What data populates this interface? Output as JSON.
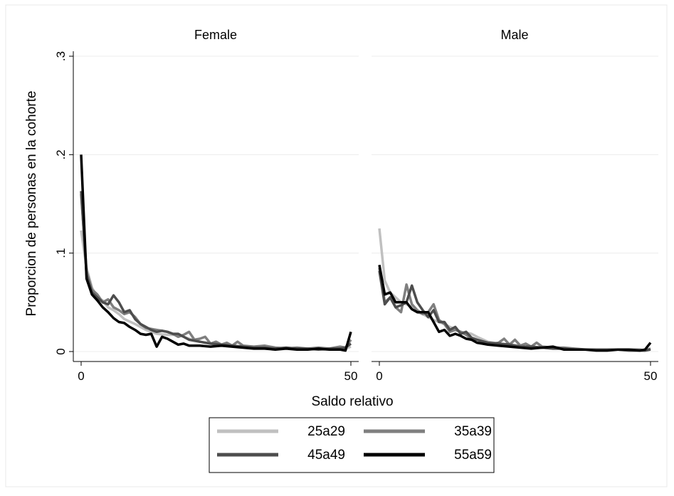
{
  "chart_data": {
    "type": "line",
    "ylabel": "Proporcion de personas en la cohorte",
    "xlabel": "Saldo relativo",
    "ylim": [
      0,
      0.3
    ],
    "xlim": [
      0,
      50
    ],
    "yticks": [
      {
        "value": 0,
        "label": "0"
      },
      {
        "value": 0.1,
        "label": ".1"
      },
      {
        "value": 0.2,
        "label": ".2"
      },
      {
        "value": 0.3,
        "label": ".3"
      }
    ],
    "xticks": [
      {
        "value": 0,
        "label": "0"
      },
      {
        "value": 50,
        "label": "50"
      }
    ],
    "grid": true,
    "legend_position": "bottom",
    "legend": [
      {
        "label": "25a29",
        "color": "#c0c0c0"
      },
      {
        "label": "35a39",
        "color": "#7f7f7f"
      },
      {
        "label": "45a49",
        "color": "#4d4d4d"
      },
      {
        "label": "55a59",
        "color": "#000000"
      }
    ],
    "panels": [
      {
        "title": "Female",
        "series": [
          {
            "name": "25a29",
            "color": "#c0c0c0",
            "x": [
              0,
              1,
              2,
              3,
              4,
              5,
              6,
              7,
              8,
              10,
              12,
              14,
              16,
              18,
              20,
              22,
              25,
              30,
              35,
              40,
              45,
              49,
              50
            ],
            "y": [
              0.123,
              0.085,
              0.065,
              0.055,
              0.052,
              0.045,
              0.042,
              0.038,
              0.033,
              0.028,
              0.022,
              0.018,
              0.017,
              0.017,
              0.013,
              0.01,
              0.007,
              0.005,
              0.004,
              0.003,
              0.002,
              0.003,
              0.005
            ]
          },
          {
            "name": "35a39",
            "color": "#7f7f7f",
            "x": [
              0,
              1,
              2,
              3,
              4,
              5,
              6,
              7,
              8,
              9,
              10,
              11,
              12,
              13,
              14,
              15,
              16,
              17,
              18,
              19,
              20,
              21,
              22,
              23,
              24,
              25,
              26,
              27,
              28,
              29,
              30,
              32,
              34,
              36,
              38,
              40,
              42,
              44,
              46,
              48,
              49,
              50
            ],
            "y": [
              0.16,
              0.082,
              0.063,
              0.058,
              0.05,
              0.053,
              0.045,
              0.042,
              0.038,
              0.04,
              0.035,
              0.028,
              0.024,
              0.023,
              0.022,
              0.021,
              0.02,
              0.018,
              0.015,
              0.017,
              0.02,
              0.012,
              0.013,
              0.015,
              0.008,
              0.01,
              0.007,
              0.009,
              0.006,
              0.01,
              0.006,
              0.005,
              0.006,
              0.004,
              0.003,
              0.004,
              0.003,
              0.004,
              0.003,
              0.005,
              0.004,
              0.012
            ]
          },
          {
            "name": "45a49",
            "color": "#4d4d4d",
            "x": [
              0,
              1,
              2,
              3,
              4,
              5,
              6,
              7,
              8,
              9,
              10,
              11,
              12,
              13,
              14,
              15,
              16,
              17,
              18,
              20,
              22,
              24,
              26,
              28,
              30,
              32,
              34,
              36,
              38,
              40,
              42,
              44,
              46,
              48,
              49,
              50
            ],
            "y": [
              0.163,
              0.078,
              0.06,
              0.055,
              0.05,
              0.048,
              0.057,
              0.05,
              0.04,
              0.042,
              0.033,
              0.028,
              0.025,
              0.022,
              0.02,
              0.021,
              0.02,
              0.018,
              0.018,
              0.012,
              0.01,
              0.008,
              0.007,
              0.006,
              0.005,
              0.004,
              0.004,
              0.003,
              0.004,
              0.003,
              0.003,
              0.002,
              0.003,
              0.003,
              0.004,
              0.008
            ]
          },
          {
            "name": "55a59",
            "color": "#000000",
            "x": [
              0,
              1,
              2,
              3,
              4,
              5,
              6,
              7,
              8,
              9,
              10,
              11,
              12,
              13,
              14,
              15,
              16,
              17,
              18,
              19,
              20,
              22,
              24,
              26,
              28,
              30,
              32,
              34,
              36,
              38,
              40,
              42,
              44,
              46,
              48,
              49,
              50
            ],
            "y": [
              0.2,
              0.074,
              0.058,
              0.052,
              0.045,
              0.04,
              0.034,
              0.03,
              0.029,
              0.025,
              0.022,
              0.018,
              0.017,
              0.018,
              0.005,
              0.015,
              0.013,
              0.01,
              0.007,
              0.008,
              0.006,
              0.006,
              0.005,
              0.006,
              0.005,
              0.004,
              0.003,
              0.003,
              0.002,
              0.003,
              0.002,
              0.002,
              0.003,
              0.002,
              0.002,
              0.001,
              0.02
            ]
          }
        ]
      },
      {
        "title": "Male",
        "series": [
          {
            "name": "25a29",
            "color": "#c0c0c0",
            "x": [
              0,
              1,
              2,
              3,
              4,
              5,
              6,
              7,
              8,
              9,
              10,
              11,
              12,
              13,
              14,
              15,
              16,
              17,
              18,
              20,
              22,
              24,
              26,
              28,
              30,
              32,
              34,
              36,
              38,
              40,
              42,
              44,
              46,
              48,
              49,
              50
            ],
            "y": [
              0.125,
              0.072,
              0.06,
              0.055,
              0.05,
              0.048,
              0.045,
              0.04,
              0.038,
              0.035,
              0.032,
              0.03,
              0.028,
              0.025,
              0.023,
              0.02,
              0.019,
              0.018,
              0.015,
              0.01,
              0.008,
              0.007,
              0.006,
              0.005,
              0.004,
              0.003,
              0.003,
              0.002,
              0.002,
              0.002,
              0.002,
              0.002,
              0.001,
              0.001,
              0.001,
              0.003
            ]
          },
          {
            "name": "35a39",
            "color": "#7f7f7f",
            "x": [
              0,
              1,
              2,
              3,
              4,
              5,
              6,
              7,
              8,
              9,
              10,
              11,
              12,
              13,
              14,
              15,
              16,
              17,
              18,
              19,
              20,
              21,
              22,
              23,
              24,
              25,
              26,
              27,
              28,
              29,
              30,
              32,
              34,
              36,
              38,
              40,
              42,
              44,
              46,
              48,
              49,
              50
            ],
            "y": [
              0.085,
              0.05,
              0.055,
              0.045,
              0.04,
              0.068,
              0.048,
              0.042,
              0.038,
              0.04,
              0.048,
              0.032,
              0.028,
              0.02,
              0.022,
              0.02,
              0.017,
              0.013,
              0.012,
              0.01,
              0.009,
              0.008,
              0.009,
              0.013,
              0.007,
              0.012,
              0.006,
              0.008,
              0.005,
              0.009,
              0.005,
              0.004,
              0.004,
              0.003,
              0.002,
              0.002,
              0.002,
              0.002,
              0.002,
              0.002,
              0.001,
              0.003
            ]
          },
          {
            "name": "45a49",
            "color": "#4d4d4d",
            "x": [
              0,
              1,
              2,
              3,
              4,
              5,
              6,
              7,
              8,
              9,
              10,
              11,
              12,
              13,
              14,
              15,
              16,
              17,
              18,
              20,
              22,
              24,
              26,
              28,
              30,
              32,
              34,
              36,
              38,
              40,
              42,
              44,
              46,
              48,
              49,
              50
            ],
            "y": [
              0.082,
              0.048,
              0.055,
              0.045,
              0.047,
              0.05,
              0.067,
              0.05,
              0.042,
              0.035,
              0.042,
              0.03,
              0.03,
              0.022,
              0.025,
              0.018,
              0.02,
              0.014,
              0.012,
              0.009,
              0.008,
              0.007,
              0.005,
              0.005,
              0.004,
              0.003,
              0.003,
              0.002,
              0.002,
              0.002,
              0.002,
              0.002,
              0.001,
              0.001,
              0.001,
              0.002
            ]
          },
          {
            "name": "55a59",
            "color": "#000000",
            "x": [
              0,
              1,
              2,
              3,
              4,
              5,
              6,
              7,
              8,
              9,
              10,
              11,
              12,
              13,
              14,
              15,
              16,
              17,
              18,
              19,
              20,
              22,
              24,
              26,
              28,
              30,
              32,
              34,
              36,
              38,
              40,
              42,
              44,
              46,
              48,
              49,
              50
            ],
            "y": [
              0.088,
              0.058,
              0.06,
              0.05,
              0.05,
              0.05,
              0.043,
              0.04,
              0.04,
              0.04,
              0.03,
              0.02,
              0.022,
              0.016,
              0.018,
              0.016,
              0.013,
              0.012,
              0.009,
              0.008,
              0.007,
              0.006,
              0.005,
              0.004,
              0.003,
              0.004,
              0.005,
              0.002,
              0.002,
              0.002,
              0.001,
              0.001,
              0.002,
              0.002,
              0.001,
              0.002,
              0.009
            ]
          }
        ]
      }
    ]
  }
}
